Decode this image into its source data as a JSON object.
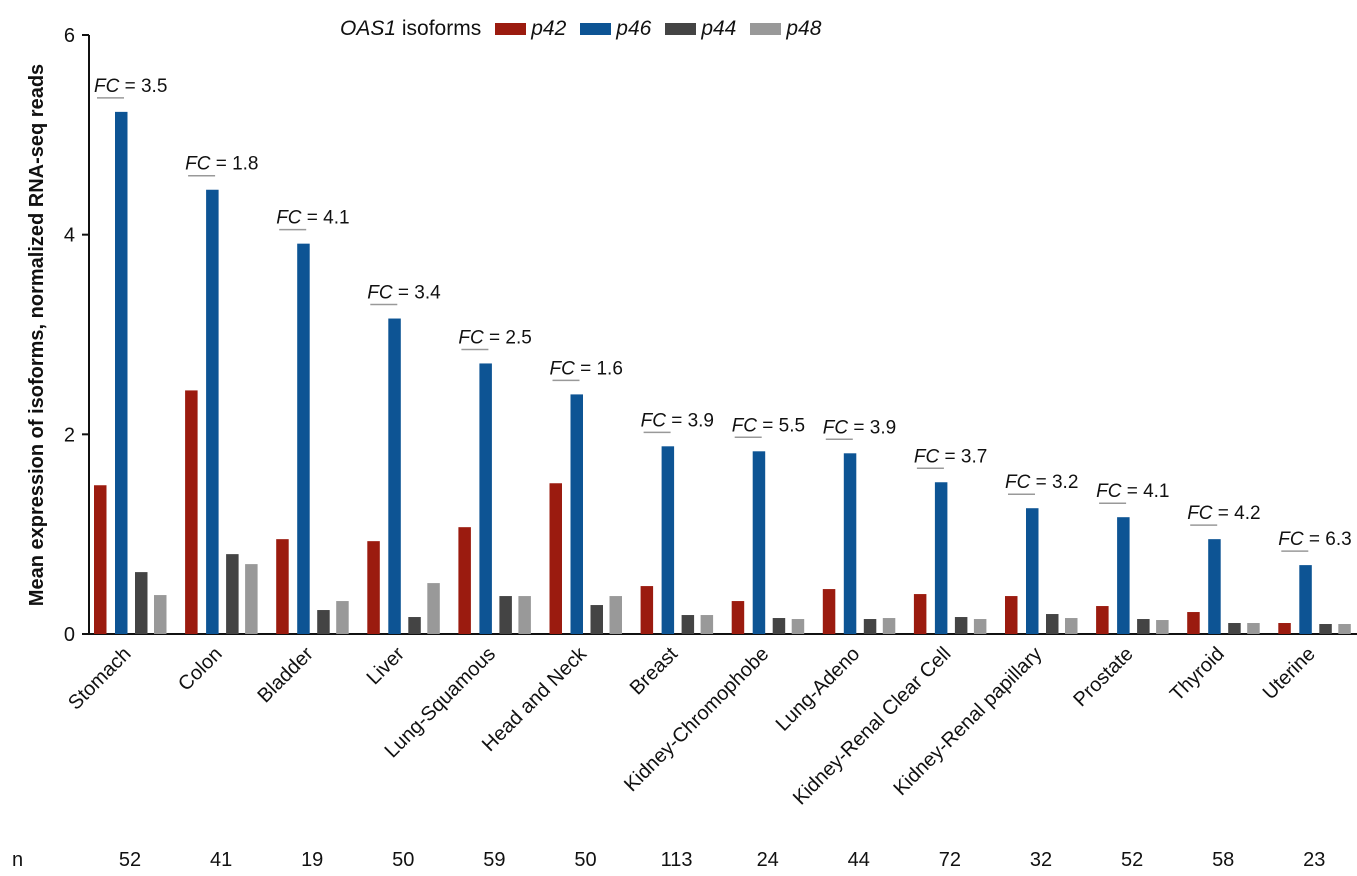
{
  "chart_data": {
    "type": "bar",
    "ylabel": "Mean expression of isoforms, normalized RNA-seq reads",
    "ylim": [
      0,
      6
    ],
    "yticks": [
      0,
      2,
      4,
      6
    ],
    "legend": {
      "title_italic": "OAS1",
      "title_rest": " isoforms",
      "placement": "top"
    },
    "categories": [
      "Stomach",
      "Colon",
      "Bladder",
      "Liver",
      "Lung-Squamous",
      "Head and Neck",
      "Breast",
      "Kidney-Chromophobe",
      "Lung-Adeno",
      "Kidney-Renal Clear Cell",
      "Kidney-Renal papillary",
      "Prostate",
      "Thyroid",
      "Uterine"
    ],
    "series": [
      {
        "name": "p42",
        "color": "#9b1b0f",
        "values": [
          1.49,
          2.44,
          0.95,
          0.93,
          1.07,
          1.51,
          0.48,
          0.33,
          0.45,
          0.4,
          0.38,
          0.28,
          0.22,
          0.11
        ]
      },
      {
        "name": "p46",
        "color": "#0d5494",
        "values": [
          5.23,
          4.45,
          3.91,
          3.16,
          2.71,
          2.4,
          1.88,
          1.83,
          1.81,
          1.52,
          1.26,
          1.17,
          0.95,
          0.69
        ]
      },
      {
        "name": "p44",
        "color": "#444444",
        "values": [
          0.62,
          0.8,
          0.24,
          0.17,
          0.38,
          0.29,
          0.19,
          0.16,
          0.15,
          0.17,
          0.2,
          0.15,
          0.11,
          0.1
        ]
      },
      {
        "name": "p48",
        "color": "#999999",
        "values": [
          0.39,
          0.7,
          0.33,
          0.51,
          0.38,
          0.38,
          0.19,
          0.15,
          0.16,
          0.15,
          0.16,
          0.14,
          0.11,
          0.1
        ]
      }
    ],
    "fc_prefix": "FC",
    "fc_labels": [
      " = 3.5",
      " = 1.8",
      " = 4.1",
      " = 3.4",
      " = 2.5",
      " = 1.6",
      " = 3.9",
      " = 5.5",
      " = 3.9",
      " = 3.7",
      " = 3.2",
      " = 4.1",
      " = 4.2",
      " = 6.3"
    ],
    "n_label": "n",
    "n_values": [
      "52",
      "41",
      "19",
      "50",
      "59",
      "50",
      "113",
      "24",
      "44",
      "72",
      "32",
      "52",
      "58",
      "23"
    ]
  }
}
